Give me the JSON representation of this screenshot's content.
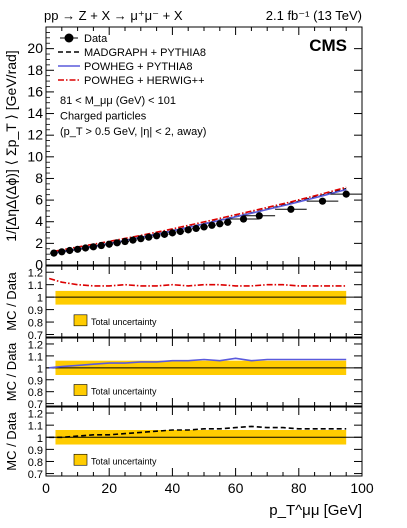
{
  "header": {
    "process": "pp → Z + X → μ⁺μ⁻ + X",
    "luminosity": "2.1 fb⁻¹ (13 TeV)"
  },
  "chart_data": [
    {
      "type": "scatter",
      "panel": "main",
      "logo": "CMS",
      "ylabel": "1/[ΔηΔ(Δϕ)] ⟨ Σp_T ⟩ [GeV/rad]",
      "ylim": [
        0,
        22
      ],
      "yticks": [
        0,
        2,
        4,
        6,
        8,
        10,
        12,
        14,
        16,
        18,
        20
      ],
      "xlim": [
        0,
        100
      ],
      "legend_placement": "top-left",
      "legend": [
        {
          "name": "Data",
          "style": "marker",
          "color": "#000000"
        },
        {
          "name": "MADGRAPH + PYTHIA8",
          "style": "dashed",
          "color": "#000000"
        },
        {
          "name": "POWHEG + PYTHIA8",
          "style": "solid",
          "color": "#5a5adc"
        },
        {
          "name": "POWHEG + HERWIG++",
          "style": "dashdot",
          "color": "#dc0000"
        }
      ],
      "annotations": [
        "81 < M_μμ (GeV) < 101",
        "Charged particles",
        "(p_T > 0.5 GeV, |η| < 2, away)"
      ],
      "x": [
        2.5,
        5,
        7.5,
        10,
        12.5,
        15,
        17.5,
        20,
        22.5,
        25,
        27.5,
        30,
        32.5,
        35,
        37.5,
        40,
        42.5,
        45,
        47.5,
        50,
        52.5,
        55,
        57.5,
        62.5,
        67.5,
        77.5,
        87.5,
        95
      ],
      "series": [
        {
          "name": "Data",
          "values": [
            1.1,
            1.22,
            1.34,
            1.45,
            1.57,
            1.68,
            1.8,
            1.92,
            2.05,
            2.17,
            2.3,
            2.43,
            2.57,
            2.7,
            2.83,
            2.97,
            3.1,
            3.25,
            3.38,
            3.52,
            3.67,
            3.81,
            3.95,
            4.25,
            4.55,
            5.15,
            5.9,
            6.55
          ]
        },
        {
          "name": "MADGRAPH + PYTHIA8",
          "values": [
            1.12,
            1.24,
            1.36,
            1.48,
            1.6,
            1.73,
            1.86,
            1.99,
            2.13,
            2.27,
            2.42,
            2.56,
            2.71,
            2.86,
            3.01,
            3.17,
            3.33,
            3.49,
            3.65,
            3.81,
            3.98,
            4.14,
            4.31,
            4.64,
            4.98,
            5.7,
            6.46,
            7.05
          ]
        },
        {
          "name": "POWHEG + PYTHIA8",
          "values": [
            1.11,
            1.23,
            1.35,
            1.47,
            1.59,
            1.71,
            1.84,
            1.97,
            2.11,
            2.25,
            2.39,
            2.54,
            2.69,
            2.84,
            2.99,
            3.15,
            3.31,
            3.47,
            3.63,
            3.8,
            3.96,
            4.12,
            4.29,
            4.62,
            4.95,
            5.65,
            6.4,
            6.98
          ]
        },
        {
          "name": "POWHEG + HERWIG++",
          "values": [
            1.27,
            1.4,
            1.53,
            1.66,
            1.79,
            1.92,
            2.05,
            2.18,
            2.32,
            2.46,
            2.6,
            2.74,
            2.88,
            3.03,
            3.18,
            3.34,
            3.5,
            3.66,
            3.82,
            3.98,
            4.14,
            4.31,
            4.48,
            4.81,
            5.15,
            5.83,
            6.58,
            7.18
          ]
        }
      ]
    },
    {
      "type": "line",
      "panel": "ratio-herwig",
      "ylabel": "MC / Data",
      "ylim": [
        0.68,
        1.25
      ],
      "yticks": [
        0.7,
        0.8,
        0.9,
        1,
        1.1,
        1.2
      ],
      "band": {
        "label": "Total uncertainty",
        "low": 0.94,
        "high": 1.05,
        "color": "#ffcc00"
      },
      "x": [
        1,
        5,
        10,
        15,
        20,
        25,
        30,
        35,
        40,
        45,
        50,
        55,
        60,
        65,
        70,
        75,
        80,
        85,
        90,
        95
      ],
      "series": [
        {
          "name": "POWHEG + HERWIG++",
          "style": "dashdot",
          "color": "#dc0000",
          "values": [
            1.15,
            1.12,
            1.1,
            1.09,
            1.09,
            1.1,
            1.09,
            1.09,
            1.1,
            1.09,
            1.1,
            1.1,
            1.09,
            1.09,
            1.1,
            1.1,
            1.09,
            1.09,
            1.09,
            1.09
          ]
        }
      ]
    },
    {
      "type": "line",
      "panel": "ratio-powheg-pythia",
      "ylabel": "MC / Data",
      "ylim": [
        0.68,
        1.25
      ],
      "yticks": [
        0.7,
        0.8,
        0.9,
        1,
        1.1,
        1.2
      ],
      "band": {
        "label": "Total uncertainty",
        "low": 0.94,
        "high": 1.06,
        "color": "#ffcc00"
      },
      "x": [
        1,
        5,
        10,
        15,
        20,
        25,
        30,
        35,
        40,
        45,
        50,
        55,
        60,
        65,
        70,
        75,
        80,
        85,
        90,
        95
      ],
      "series": [
        {
          "name": "POWHEG + PYTHIA8",
          "style": "solid",
          "color": "#5a5adc",
          "values": [
            1.0,
            1.01,
            1.02,
            1.03,
            1.04,
            1.04,
            1.05,
            1.05,
            1.06,
            1.06,
            1.07,
            1.06,
            1.08,
            1.06,
            1.07,
            1.07,
            1.07,
            1.07,
            1.07,
            1.07
          ]
        }
      ]
    },
    {
      "type": "line",
      "panel": "ratio-madgraph",
      "ylabel": "MC / Data",
      "ylim": [
        0.68,
        1.25
      ],
      "yticks": [
        0.7,
        0.8,
        0.9,
        1,
        1.1,
        1.2
      ],
      "xlim": [
        0,
        100
      ],
      "xticks": [
        0,
        20,
        40,
        60,
        80,
        100
      ],
      "xlabel": "p_T^μμ [GeV]",
      "band": {
        "label": "Total uncertainty",
        "low": 0.94,
        "high": 1.06,
        "color": "#ffcc00"
      },
      "x": [
        1,
        5,
        10,
        15,
        20,
        25,
        30,
        35,
        40,
        45,
        50,
        55,
        60,
        65,
        70,
        75,
        80,
        85,
        90,
        95
      ],
      "series": [
        {
          "name": "MADGRAPH + PYTHIA8",
          "style": "dashed",
          "color": "#000000",
          "values": [
            1.0,
            1.0,
            1.01,
            1.02,
            1.02,
            1.03,
            1.04,
            1.05,
            1.06,
            1.06,
            1.07,
            1.07,
            1.08,
            1.09,
            1.08,
            1.08,
            1.07,
            1.07,
            1.07,
            1.07
          ]
        }
      ]
    }
  ]
}
